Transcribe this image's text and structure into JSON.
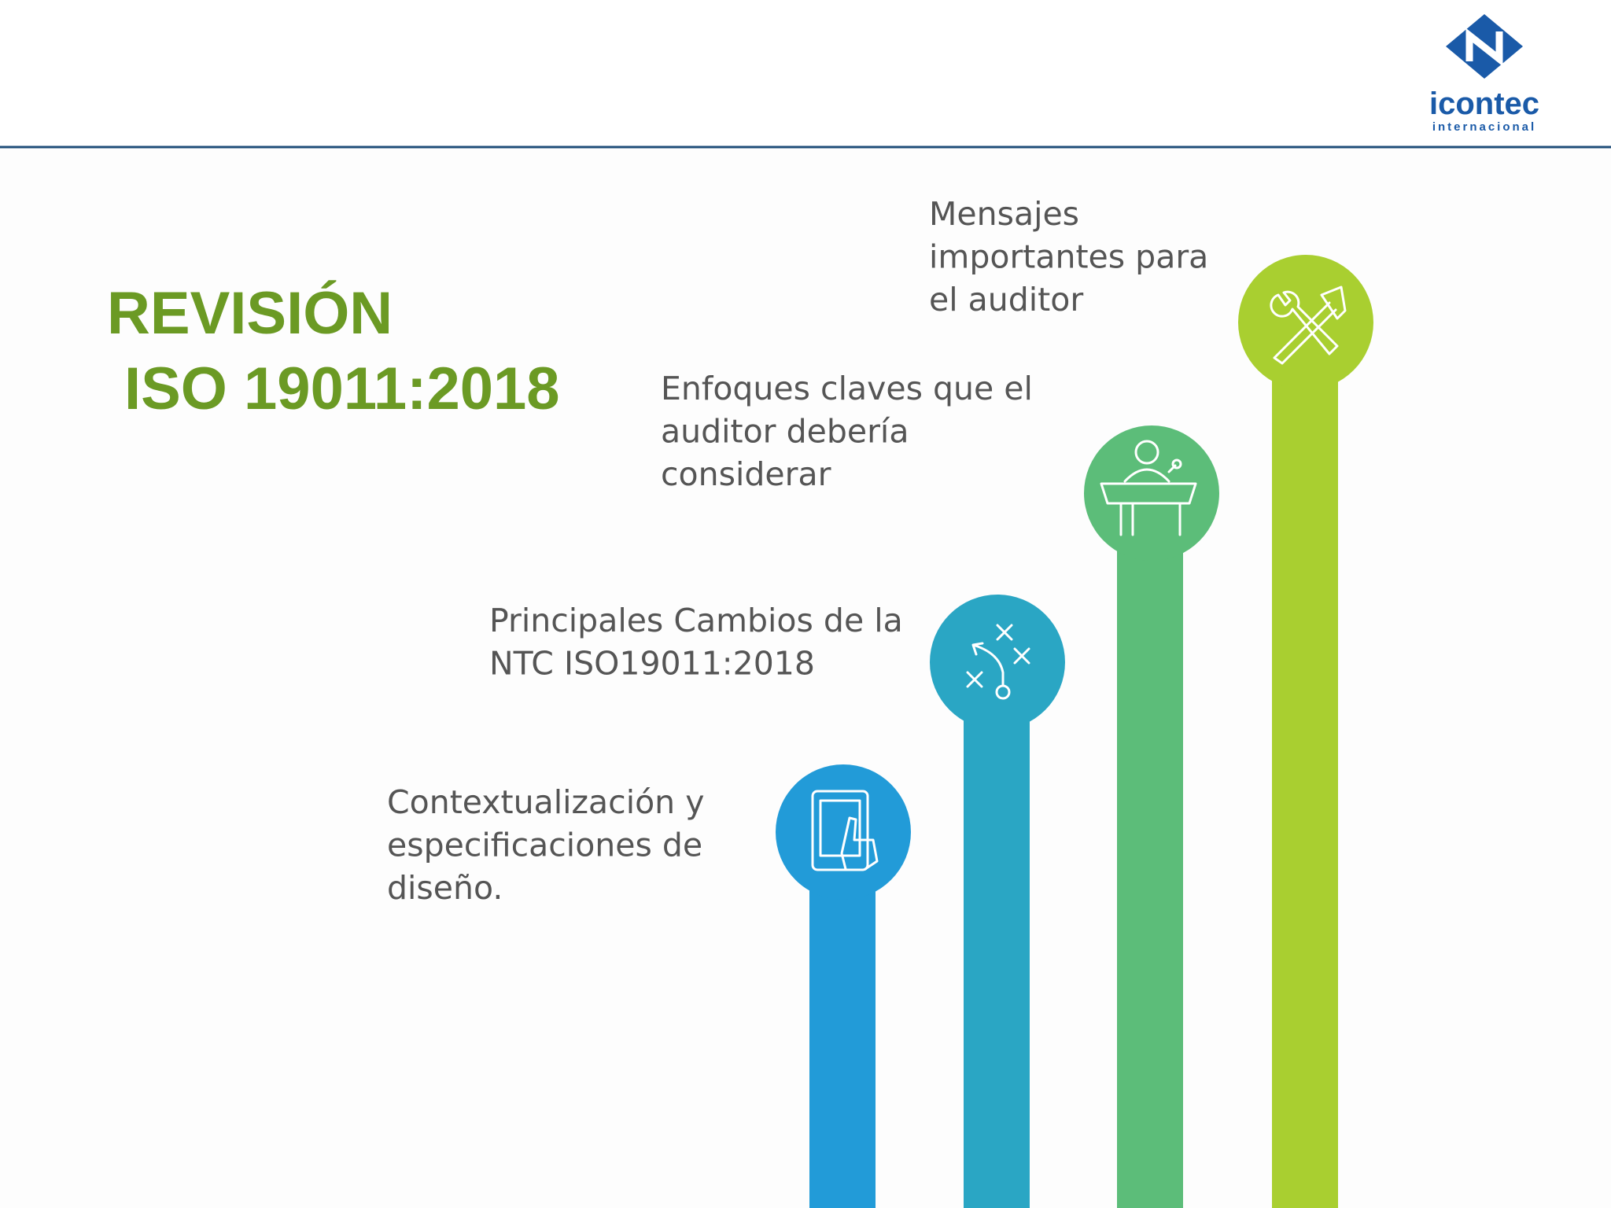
{
  "logo": {
    "name": "icontec",
    "subtitle": "internacional"
  },
  "title": {
    "line1": "REVISIÓN",
    "line2": "ISO 19011:2018"
  },
  "steps": [
    {
      "lines": [
        "Contextualización y",
        "especificaciones de",
        "diseño."
      ]
    },
    {
      "lines": [
        "Principales Cambios de la",
        "NTC ISO19011:2018"
      ]
    },
    {
      "lines": [
        "Enfoques claves que el",
        "auditor debería",
        "considerar"
      ]
    },
    {
      "lines": [
        "Mensajes",
        "importantes para",
        "el auditor"
      ]
    }
  ]
}
